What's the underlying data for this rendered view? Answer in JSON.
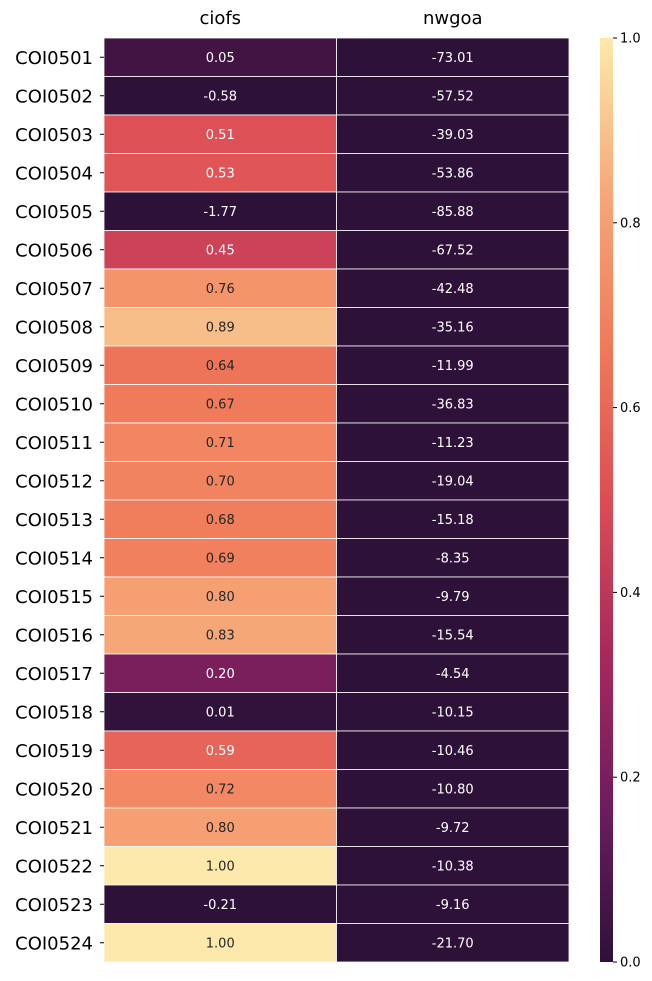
{
  "chart_data": {
    "type": "heatmap",
    "columns": [
      "ciofs",
      "nwgoa"
    ],
    "rows": [
      "COI0501",
      "COI0502",
      "COI0503",
      "COI0504",
      "COI0505",
      "COI0506",
      "COI0507",
      "COI0508",
      "COI0509",
      "COI0510",
      "COI0511",
      "COI0512",
      "COI0513",
      "COI0514",
      "COI0515",
      "COI0516",
      "COI0517",
      "COI0518",
      "COI0519",
      "COI0520",
      "COI0521",
      "COI0522",
      "COI0523",
      "COI0524"
    ],
    "values": [
      [
        0.05,
        -73.01
      ],
      [
        -0.58,
        -57.52
      ],
      [
        0.51,
        -39.03
      ],
      [
        0.53,
        -53.86
      ],
      [
        -1.77,
        -85.88
      ],
      [
        0.45,
        -67.52
      ],
      [
        0.76,
        -42.48
      ],
      [
        0.89,
        -35.16
      ],
      [
        0.64,
        -11.99
      ],
      [
        0.67,
        -36.83
      ],
      [
        0.71,
        -11.23
      ],
      [
        0.7,
        -19.04
      ],
      [
        0.68,
        -15.18
      ],
      [
        0.69,
        -8.35
      ],
      [
        0.8,
        -9.79
      ],
      [
        0.83,
        -15.54
      ],
      [
        0.2,
        -4.54
      ],
      [
        0.01,
        -10.15
      ],
      [
        0.59,
        -10.46
      ],
      [
        0.72,
        -10.8
      ],
      [
        0.8,
        -9.72
      ],
      [
        1.0,
        -10.38
      ],
      [
        -0.21,
        -9.16
      ],
      [
        1.0,
        -21.7
      ]
    ],
    "value_format": "0.00",
    "colorbar": {
      "vmin": 0.0,
      "vmax": 1.0,
      "ticks": [
        "0.0",
        "0.2",
        "0.4",
        "0.6",
        "0.8",
        "1.0"
      ],
      "colormap": "magma-like",
      "stops": [
        "#2d1139",
        "#6e1c5c",
        "#a8285d",
        "#dc4d55",
        "#f07a5a",
        "#f6a878",
        "#fde9ab"
      ]
    },
    "grid": false,
    "cell_border_color": "#ffffff"
  }
}
